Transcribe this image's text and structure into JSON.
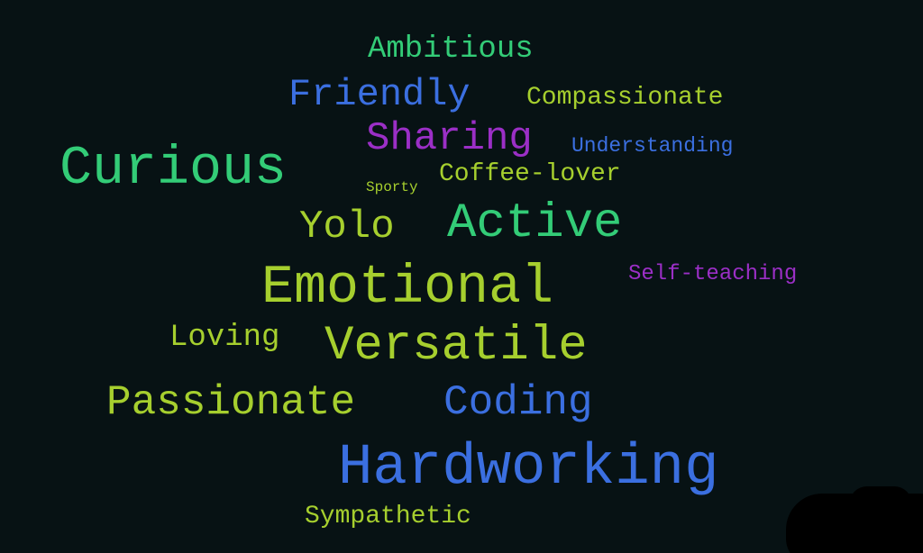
{
  "word_cloud": {
    "colors": {
      "background": "#071214",
      "green": "#33cc77",
      "lime": "#a6cf2e",
      "blue": "#3b6fe0",
      "purple": "#9b2fc6"
    },
    "words": [
      {
        "text": "Ambitious",
        "color": "#33cc77"
      },
      {
        "text": "Friendly",
        "color": "#3b6fe0"
      },
      {
        "text": "Compassionate",
        "color": "#a6cf2e"
      },
      {
        "text": "Sharing",
        "color": "#9b2fc6"
      },
      {
        "text": "Understanding",
        "color": "#3b6fe0"
      },
      {
        "text": "Curious",
        "color": "#33cc77"
      },
      {
        "text": "Sporty",
        "color": "#a6cf2e"
      },
      {
        "text": "Coffee-lover",
        "color": "#a6cf2e"
      },
      {
        "text": "Yolo",
        "color": "#a6cf2e"
      },
      {
        "text": "Active",
        "color": "#33cc77"
      },
      {
        "text": "Emotional",
        "color": "#a6cf2e"
      },
      {
        "text": "Self-teaching",
        "color": "#9b2fc6"
      },
      {
        "text": "Loving",
        "color": "#a6cf2e"
      },
      {
        "text": "Versatile",
        "color": "#a6cf2e"
      },
      {
        "text": "Passionate",
        "color": "#a6cf2e"
      },
      {
        "text": "Coding",
        "color": "#3b6fe0"
      },
      {
        "text": "Hardworking",
        "color": "#3b6fe0"
      },
      {
        "text": "Sympathetic",
        "color": "#a6cf2e"
      }
    ]
  }
}
